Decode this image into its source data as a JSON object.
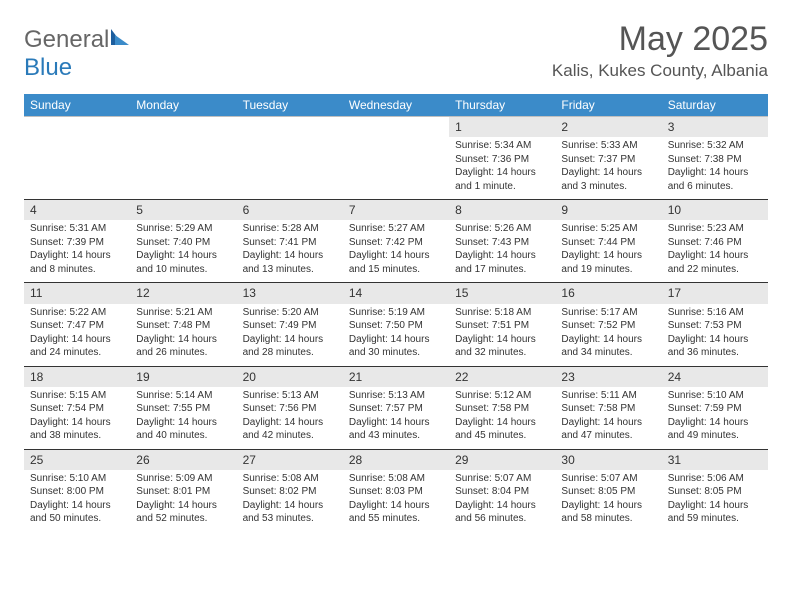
{
  "brand": {
    "text_general": "General",
    "text_blue": "Blue"
  },
  "title": "May 2025",
  "location": "Kalis, Kukes County, Albania",
  "colors": {
    "header_bg": "#3b8bc9",
    "header_text": "#ffffff",
    "daynum_bg": "#e8e8e8",
    "row_border": "#333333",
    "text": "#333333",
    "page_bg": "#ffffff"
  },
  "fonts": {
    "title_size": 34,
    "location_size": 17,
    "weekday_size": 12,
    "daynum_size": 12,
    "body_size": 10
  },
  "weekdays": [
    "Sunday",
    "Monday",
    "Tuesday",
    "Wednesday",
    "Thursday",
    "Friday",
    "Saturday"
  ],
  "weeks": [
    [
      null,
      null,
      null,
      null,
      {
        "n": "1",
        "sr": "5:34 AM",
        "ss": "7:36 PM",
        "dl": "14 hours and 1 minute."
      },
      {
        "n": "2",
        "sr": "5:33 AM",
        "ss": "7:37 PM",
        "dl": "14 hours and 3 minutes."
      },
      {
        "n": "3",
        "sr": "5:32 AM",
        "ss": "7:38 PM",
        "dl": "14 hours and 6 minutes."
      }
    ],
    [
      {
        "n": "4",
        "sr": "5:31 AM",
        "ss": "7:39 PM",
        "dl": "14 hours and 8 minutes."
      },
      {
        "n": "5",
        "sr": "5:29 AM",
        "ss": "7:40 PM",
        "dl": "14 hours and 10 minutes."
      },
      {
        "n": "6",
        "sr": "5:28 AM",
        "ss": "7:41 PM",
        "dl": "14 hours and 13 minutes."
      },
      {
        "n": "7",
        "sr": "5:27 AM",
        "ss": "7:42 PM",
        "dl": "14 hours and 15 minutes."
      },
      {
        "n": "8",
        "sr": "5:26 AM",
        "ss": "7:43 PM",
        "dl": "14 hours and 17 minutes."
      },
      {
        "n": "9",
        "sr": "5:25 AM",
        "ss": "7:44 PM",
        "dl": "14 hours and 19 minutes."
      },
      {
        "n": "10",
        "sr": "5:23 AM",
        "ss": "7:46 PM",
        "dl": "14 hours and 22 minutes."
      }
    ],
    [
      {
        "n": "11",
        "sr": "5:22 AM",
        "ss": "7:47 PM",
        "dl": "14 hours and 24 minutes."
      },
      {
        "n": "12",
        "sr": "5:21 AM",
        "ss": "7:48 PM",
        "dl": "14 hours and 26 minutes."
      },
      {
        "n": "13",
        "sr": "5:20 AM",
        "ss": "7:49 PM",
        "dl": "14 hours and 28 minutes."
      },
      {
        "n": "14",
        "sr": "5:19 AM",
        "ss": "7:50 PM",
        "dl": "14 hours and 30 minutes."
      },
      {
        "n": "15",
        "sr": "5:18 AM",
        "ss": "7:51 PM",
        "dl": "14 hours and 32 minutes."
      },
      {
        "n": "16",
        "sr": "5:17 AM",
        "ss": "7:52 PM",
        "dl": "14 hours and 34 minutes."
      },
      {
        "n": "17",
        "sr": "5:16 AM",
        "ss": "7:53 PM",
        "dl": "14 hours and 36 minutes."
      }
    ],
    [
      {
        "n": "18",
        "sr": "5:15 AM",
        "ss": "7:54 PM",
        "dl": "14 hours and 38 minutes."
      },
      {
        "n": "19",
        "sr": "5:14 AM",
        "ss": "7:55 PM",
        "dl": "14 hours and 40 minutes."
      },
      {
        "n": "20",
        "sr": "5:13 AM",
        "ss": "7:56 PM",
        "dl": "14 hours and 42 minutes."
      },
      {
        "n": "21",
        "sr": "5:13 AM",
        "ss": "7:57 PM",
        "dl": "14 hours and 43 minutes."
      },
      {
        "n": "22",
        "sr": "5:12 AM",
        "ss": "7:58 PM",
        "dl": "14 hours and 45 minutes."
      },
      {
        "n": "23",
        "sr": "5:11 AM",
        "ss": "7:58 PM",
        "dl": "14 hours and 47 minutes."
      },
      {
        "n": "24",
        "sr": "5:10 AM",
        "ss": "7:59 PM",
        "dl": "14 hours and 49 minutes."
      }
    ],
    [
      {
        "n": "25",
        "sr": "5:10 AM",
        "ss": "8:00 PM",
        "dl": "14 hours and 50 minutes."
      },
      {
        "n": "26",
        "sr": "5:09 AM",
        "ss": "8:01 PM",
        "dl": "14 hours and 52 minutes."
      },
      {
        "n": "27",
        "sr": "5:08 AM",
        "ss": "8:02 PM",
        "dl": "14 hours and 53 minutes."
      },
      {
        "n": "28",
        "sr": "5:08 AM",
        "ss": "8:03 PM",
        "dl": "14 hours and 55 minutes."
      },
      {
        "n": "29",
        "sr": "5:07 AM",
        "ss": "8:04 PM",
        "dl": "14 hours and 56 minutes."
      },
      {
        "n": "30",
        "sr": "5:07 AM",
        "ss": "8:05 PM",
        "dl": "14 hours and 58 minutes."
      },
      {
        "n": "31",
        "sr": "5:06 AM",
        "ss": "8:05 PM",
        "dl": "14 hours and 59 minutes."
      }
    ]
  ],
  "labels": {
    "sunrise": "Sunrise: ",
    "sunset": "Sunset: ",
    "daylight": "Daylight: "
  }
}
